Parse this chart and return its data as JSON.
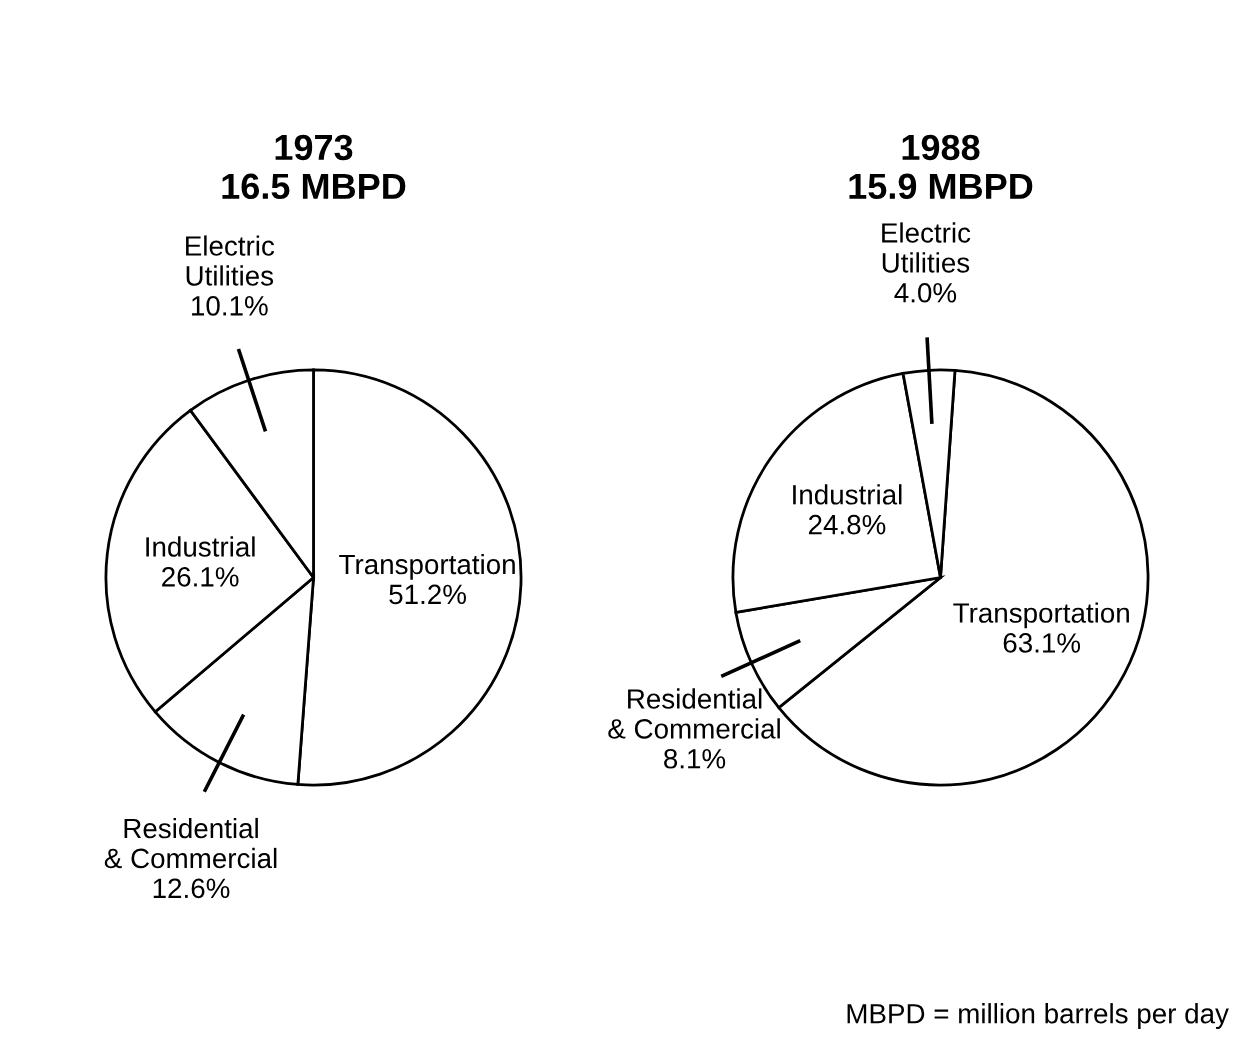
{
  "chart_data": [
    {
      "type": "pie",
      "title": "1973\n16.5 MBPD",
      "categories": [
        "Transportation",
        "Residential & Commercial",
        "Industrial",
        "Electric Utilities"
      ],
      "values": [
        51.2,
        12.6,
        26.1,
        10.1
      ],
      "value_labels": [
        "51.2%",
        "12.6%",
        "26.1%",
        "10.1%"
      ],
      "colors": [
        "#ffffff",
        "#ffffff",
        "#ffffff",
        "#ffffff"
      ]
    },
    {
      "type": "pie",
      "title": "1988\n15.9 MBPD",
      "categories": [
        "Transportation",
        "Residential & Commercial",
        "Industrial",
        "Electric Utilities"
      ],
      "values": [
        63.1,
        8.1,
        24.8,
        4.0
      ],
      "value_labels": [
        "63.1%",
        "8.1%",
        "24.8%",
        "4.0%"
      ],
      "colors": [
        "#ffffff",
        "#ffffff",
        "#ffffff",
        "#ffffff"
      ],
      "annotations": [
        "MBPD = million barrels per day"
      ]
    }
  ]
}
